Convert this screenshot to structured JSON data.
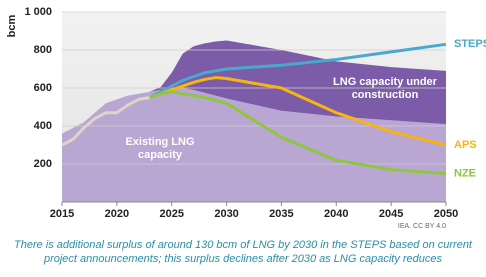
{
  "chart_data": {
    "type": "stacked-area-line",
    "y_label": "bcm",
    "source": "IEA. CC BY 4.0",
    "caption": "There is additional surplus of around 130 bcm of LNG by 2030 in the STEPS based on current project announcements; this surplus declines after 2030 as LNG capacity reduces",
    "x": [
      2015,
      2016,
      2017,
      2018,
      2019,
      2020,
      2021,
      2022,
      2023,
      2024,
      2025,
      2026,
      2027,
      2028,
      2029,
      2030,
      2035,
      2040,
      2045,
      2050
    ],
    "xlim": [
      2015,
      2050
    ],
    "xticks": [
      2015,
      2020,
      2025,
      2030,
      2035,
      2040,
      2045,
      2050
    ],
    "ylim": [
      0,
      1000
    ],
    "yticks": [
      200,
      400,
      600,
      800,
      {
        "value": 1000,
        "label": "1 000"
      }
    ],
    "grid": true,
    "areas": [
      {
        "name": "Existing LNG capacity",
        "color": "#b9a6d2",
        "values": [
          360,
          390,
          420,
          470,
          520,
          540,
          560,
          570,
          580,
          590,
          600,
          600,
          590,
          575,
          560,
          545,
          480,
          450,
          430,
          410
        ]
      },
      {
        "name": "LNG capacity under construction",
        "color": "#7c5ca8",
        "values": [
          0,
          0,
          0,
          0,
          0,
          0,
          0,
          0,
          0,
          15,
          80,
          180,
          230,
          260,
          285,
          305,
          320,
          290,
          280,
          280
        ]
      }
    ],
    "lines": [
      {
        "color": "#ddd5c6",
        "values": [
          300,
          330,
          390,
          440,
          470,
          470,
          510,
          540,
          550,
          null,
          null,
          null,
          null,
          null,
          null,
          null,
          null,
          null,
          null,
          null
        ]
      },
      {
        "name": "STEPS",
        "color": "#49a9cc",
        "values": [
          null,
          null,
          null,
          null,
          null,
          null,
          null,
          null,
          550,
          580,
          610,
          640,
          660,
          680,
          690,
          700,
          720,
          750,
          790,
          830
        ]
      },
      {
        "name": "APS",
        "color": "#f6b510",
        "values": [
          null,
          null,
          null,
          null,
          null,
          null,
          null,
          null,
          550,
          570,
          590,
          610,
          630,
          645,
          655,
          650,
          600,
          470,
          370,
          300
        ]
      },
      {
        "name": "NZE",
        "color": "#8dc63f",
        "values": [
          null,
          null,
          null,
          null,
          null,
          null,
          null,
          null,
          550,
          570,
          580,
          570,
          560,
          550,
          535,
          520,
          340,
          220,
          170,
          150
        ]
      }
    ]
  }
}
